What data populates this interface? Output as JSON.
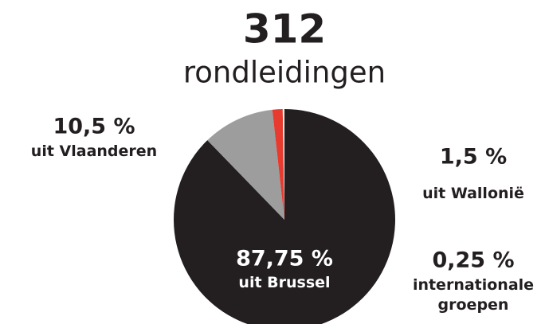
{
  "chart_data": {
    "type": "pie",
    "title": "312",
    "subtitle": "rondleidingen",
    "categories": [
      "uit Brussel",
      "uit Vlaanderen",
      "uit Wallonië",
      "internationale groepen"
    ],
    "values": [
      87.75,
      10.5,
      1.5,
      0.25
    ],
    "value_labels": [
      "87,75 %",
      "10,5 %",
      "1,5 %",
      "0,25 %"
    ],
    "colors": [
      "#231f20",
      "#9d9d9d",
      "#e63b2e",
      "#f2f2f2"
    ]
  }
}
